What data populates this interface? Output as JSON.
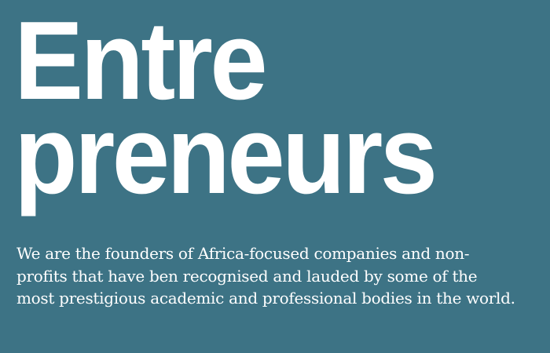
{
  "headline": {
    "line1": "Entre",
    "line2": "preneurs"
  },
  "description": "We are the founders of Africa-focused companies and non-profits that have ben recognised and lauded by some of the most prestigious academic and professional bodies in the world.",
  "colors": {
    "background": "#3d7385",
    "text": "#ffffff"
  }
}
